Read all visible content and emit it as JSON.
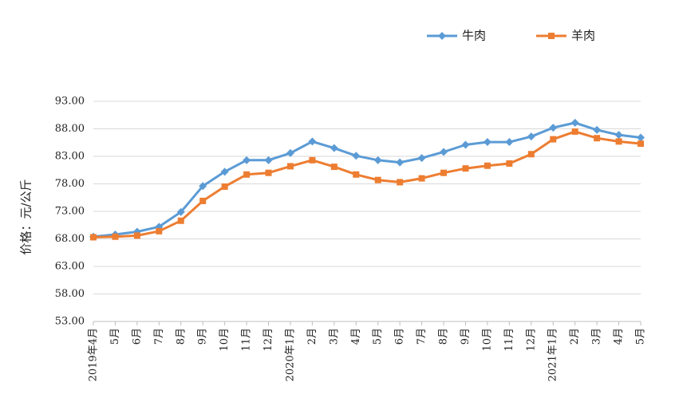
{
  "chart_data": {
    "type": "line",
    "title": "",
    "xlabel": "",
    "ylabel": "价格：元/公斤",
    "ylim": [
      53,
      93
    ],
    "yticks": [
      "93.00",
      "88.00",
      "83.00",
      "78.00",
      "73.00",
      "68.00",
      "63.00",
      "58.00",
      "53.00"
    ],
    "grid": true,
    "legend_position": "top-right",
    "categories": [
      "2019年4月",
      "5月",
      "6月",
      "7月",
      "8月",
      "9月",
      "10月",
      "11月",
      "12月",
      "2020年1月",
      "2月",
      "3月",
      "4月",
      "5月",
      "6月",
      "7月",
      "8月",
      "9月",
      "10月",
      "11月",
      "12月",
      "2021年1月",
      "2月",
      "3月",
      "4月",
      "5月"
    ],
    "series": [
      {
        "name": "牛肉",
        "color": "#5B9BD5",
        "marker": "diamond",
        "values": [
          68.4,
          68.8,
          69.3,
          70.2,
          72.9,
          77.6,
          80.2,
          82.3,
          82.3,
          83.6,
          85.7,
          84.5,
          83.1,
          82.3,
          81.9,
          82.7,
          83.8,
          85.1,
          85.6,
          85.6,
          86.6,
          88.2,
          89.1,
          87.8,
          86.9,
          86.4
        ]
      },
      {
        "name": "羊肉",
        "color": "#ED7D31",
        "marker": "square",
        "values": [
          68.3,
          68.4,
          68.6,
          69.4,
          71.3,
          74.9,
          77.5,
          79.7,
          80.0,
          81.2,
          82.3,
          81.1,
          79.7,
          78.7,
          78.3,
          79.0,
          80.0,
          80.8,
          81.3,
          81.7,
          83.4,
          86.1,
          87.5,
          86.3,
          85.7,
          85.3
        ]
      }
    ]
  }
}
